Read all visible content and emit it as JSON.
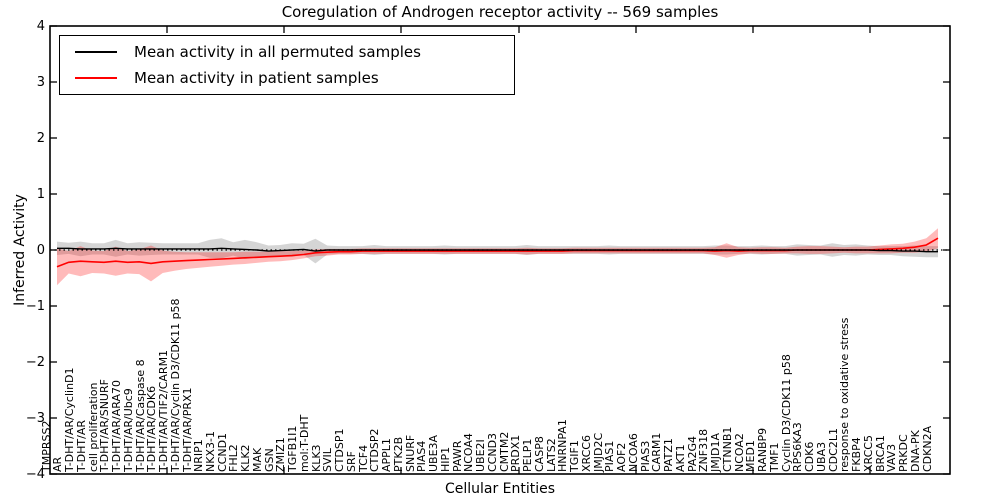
{
  "legend": {
    "items": [
      {
        "label": "Mean activity in all permuted samples",
        "color": "#000000"
      },
      {
        "label": "Mean activity in patient samples",
        "color": "#ff0000"
      }
    ]
  },
  "chart_data": {
    "type": "line",
    "title": "Coregulation of Androgen receptor activity -- 569 samples",
    "xlabel": "Cellular Entities",
    "ylabel": "Inferred Activity",
    "ylim": [
      -4,
      4
    ],
    "yticks": [
      -4,
      -3,
      -2,
      -1,
      0,
      1,
      2,
      3,
      4
    ],
    "ytick_labels": [
      "−4",
      "−3",
      "−2",
      "−1",
      "0",
      "1",
      "2",
      "3",
      "4"
    ],
    "grid": false,
    "legend_position": "upper left",
    "zero_line": {
      "y": 0,
      "style": "dotted",
      "color": "#000000"
    },
    "categories": [
      "TMPRSS2",
      "AR",
      "T-DHT/AR/CyclinD1",
      "T-DHT/AR",
      "cell proliferation",
      "T-DHT/AR/SNURF",
      "T-DHT/AR/ARA70",
      "T-DHT/AR/Ubc9",
      "T-DHT/AR/Caspase 8",
      "T-DHT/AR/CDK6",
      "T-DHT/AR/TIF2/CARM1",
      "T-DHT/AR/Cyclin D3/CDK11 p58",
      "T-DHT/AR/PRX1",
      "NRIP1",
      "NKX3-1",
      "CCND1",
      "FHL2",
      "KLK2",
      "MAK",
      "GSN",
      "ZMIZ1",
      "TGFB1I1",
      "mol:T-DHT",
      "KLK3",
      "SVIL",
      "CTDSP1",
      "SRF",
      "TCF4",
      "CTDSP2",
      "APPL1",
      "PTK2B",
      "SNURF",
      "PIAS4",
      "UBE3A",
      "HIP1",
      "PAWR",
      "NCOA4",
      "UBE2I",
      "CCND3",
      "CMTM2",
      "PRDX1",
      "PELP1",
      "CASP8",
      "LATS2",
      "HNRNPA1",
      "TGIF1",
      "XRCC6",
      "JMJD2C",
      "PIAS1",
      "AOF2",
      "NCOA6",
      "PIAS3",
      "CARM1",
      "PATZ1",
      "AKT1",
      "PA2G4",
      "ZNF318",
      "JMJD1A",
      "CTNNB1",
      "NCOA2",
      "MED1",
      "RANBP9",
      "TMF1",
      "Cyclin D3/CDK11 p58",
      "RPS6KA3",
      "CDK6",
      "UBA3",
      "CDC2L1",
      "response to oxidative stress",
      "FKBP4",
      "XRCC5",
      "BRCA1",
      "VAV3",
      "PRKDC",
      "DNA-PK",
      "CDKN2A"
    ],
    "series": [
      {
        "name": "Mean activity in all permuted samples",
        "color": "#000000",
        "band_color": "rgba(125,125,125,0.32)",
        "values": [
          0.03,
          0.03,
          0.02,
          0.02,
          0.02,
          0.03,
          0.02,
          0.02,
          0.02,
          0.02,
          0.02,
          0.02,
          0.02,
          0.02,
          0.03,
          0.02,
          0.01,
          0.0,
          -0.02,
          -0.01,
          0.0,
          0.01,
          -0.02,
          0.0,
          0.0,
          0.0,
          0.0,
          0.0,
          0.0,
          0.0,
          0.0,
          0.0,
          0.0,
          0.0,
          0.0,
          0.0,
          0.0,
          0.0,
          0.0,
          0.0,
          0.0,
          0.0,
          0.0,
          0.0,
          0.0,
          0.0,
          0.0,
          0.0,
          0.0,
          0.0,
          0.0,
          0.0,
          0.0,
          0.0,
          0.0,
          0.0,
          0.0,
          0.0,
          0.0,
          0.0,
          0.0,
          0.0,
          0.0,
          0.0,
          0.0,
          0.0,
          0.0,
          0.0,
          0.0,
          0.0,
          -0.01,
          -0.01,
          -0.02,
          -0.02,
          -0.03,
          -0.03
        ],
        "band_halfwidth": [
          0.12,
          0.1,
          0.13,
          0.1,
          0.1,
          0.15,
          0.1,
          0.12,
          0.11,
          0.1,
          0.1,
          0.1,
          0.1,
          0.16,
          0.18,
          0.12,
          0.17,
          0.14,
          0.1,
          0.1,
          0.12,
          0.1,
          0.22,
          0.08,
          0.07,
          0.07,
          0.07,
          0.09,
          0.07,
          0.07,
          0.07,
          0.07,
          0.07,
          0.08,
          0.07,
          0.07,
          0.07,
          0.07,
          0.07,
          0.07,
          0.09,
          0.07,
          0.07,
          0.07,
          0.07,
          0.07,
          0.07,
          0.08,
          0.07,
          0.07,
          0.07,
          0.07,
          0.07,
          0.07,
          0.07,
          0.07,
          0.08,
          0.08,
          0.07,
          0.07,
          0.08,
          0.07,
          0.07,
          0.1,
          0.09,
          0.08,
          0.12,
          0.09,
          0.1,
          0.08,
          0.08,
          0.08,
          0.09,
          0.1,
          0.1,
          0.1
        ]
      },
      {
        "name": "Mean activity in patient samples",
        "color": "#ff0000",
        "band_color": "rgba(255,0,0,0.27)",
        "values": [
          -0.3,
          -0.22,
          -0.2,
          -0.21,
          -0.22,
          -0.2,
          -0.22,
          -0.21,
          -0.24,
          -0.21,
          -0.2,
          -0.19,
          -0.18,
          -0.17,
          -0.16,
          -0.15,
          -0.14,
          -0.13,
          -0.12,
          -0.11,
          -0.1,
          -0.08,
          -0.05,
          -0.04,
          -0.03,
          -0.03,
          -0.02,
          -0.02,
          -0.02,
          -0.02,
          -0.02,
          -0.02,
          -0.02,
          -0.02,
          -0.02,
          -0.02,
          -0.02,
          -0.02,
          -0.02,
          -0.02,
          -0.02,
          -0.02,
          -0.02,
          -0.02,
          -0.01,
          -0.01,
          -0.01,
          -0.01,
          -0.01,
          -0.01,
          -0.01,
          -0.01,
          -0.01,
          -0.01,
          -0.01,
          -0.01,
          -0.02,
          -0.01,
          -0.02,
          -0.01,
          -0.01,
          -0.01,
          -0.01,
          0.0,
          0.0,
          0.0,
          0.0,
          0.0,
          0.0,
          0.0,
          0.01,
          0.02,
          0.03,
          0.05,
          0.09,
          0.21
        ],
        "band_halfwidth": [
          0.33,
          0.2,
          0.27,
          0.2,
          0.2,
          0.26,
          0.2,
          0.22,
          0.32,
          0.2,
          0.17,
          0.15,
          0.14,
          0.13,
          0.12,
          0.11,
          0.11,
          0.1,
          0.09,
          0.09,
          0.08,
          0.07,
          0.06,
          0.06,
          0.05,
          0.05,
          0.05,
          0.05,
          0.05,
          0.05,
          0.05,
          0.05,
          0.05,
          0.05,
          0.05,
          0.05,
          0.05,
          0.05,
          0.05,
          0.05,
          0.06,
          0.05,
          0.05,
          0.05,
          0.05,
          0.05,
          0.05,
          0.05,
          0.05,
          0.05,
          0.05,
          0.05,
          0.05,
          0.05,
          0.05,
          0.05,
          0.07,
          0.13,
          0.07,
          0.05,
          0.06,
          0.06,
          0.05,
          0.06,
          0.07,
          0.07,
          0.06,
          0.05,
          0.06,
          0.06,
          0.07,
          0.08,
          0.08,
          0.1,
          0.12,
          0.18
        ]
      }
    ]
  }
}
